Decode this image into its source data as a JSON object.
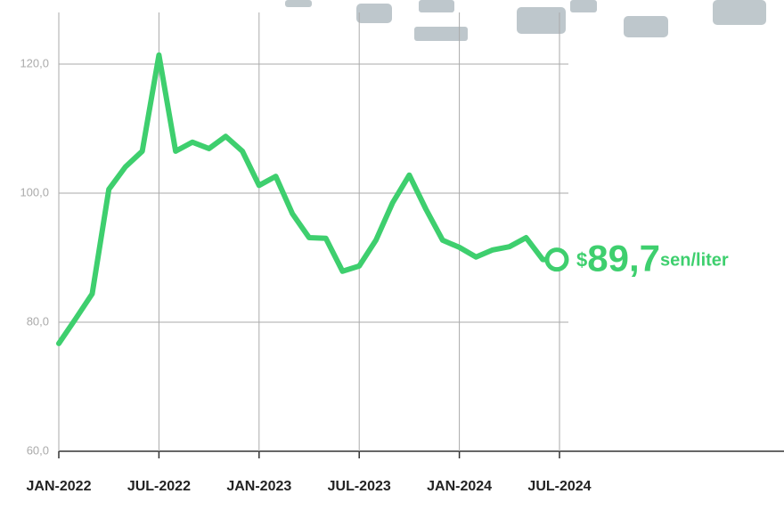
{
  "chart_data": {
    "type": "line",
    "categories": [
      "JAN-2022",
      null,
      null,
      null,
      null,
      null,
      "JUL-2022",
      null,
      null,
      null,
      null,
      null,
      "JAN-2023",
      null,
      null,
      null,
      null,
      null,
      "JUL-2023",
      null,
      null,
      null,
      null,
      null,
      "JAN-2024",
      null,
      null,
      null,
      null,
      null,
      "JUL-2024"
    ],
    "series": [
      {
        "color": "#3ecf6e",
        "values": [
          76.7,
          80.5,
          84.4,
          100.6,
          104.1,
          106.5,
          121.4,
          106.5,
          107.9,
          106.9,
          108.8,
          106.5,
          101.2,
          102.6,
          96.8,
          93.1,
          93.0,
          87.9,
          88.7,
          92.7,
          98.5,
          102.8,
          97.5,
          92.7,
          91.6,
          90.1,
          91.2,
          91.7,
          93.1,
          89.7,
          89.7
        ],
        "value_labels": [
          null,
          null,
          null,
          null,
          null,
          null,
          null,
          null,
          null,
          null,
          null,
          null,
          null,
          null,
          null,
          null,
          null,
          null,
          null,
          null,
          null,
          null,
          null,
          null,
          null,
          null,
          null,
          null,
          null,
          null,
          "89,7"
        ]
      }
    ],
    "annotation": {
      "prefix": "$",
      "unit": "sen/liter"
    },
    "ylim": [
      60,
      128
    ],
    "yticks": [
      {
        "value": 60,
        "label": "60,0"
      },
      {
        "value": 80,
        "label": "80,0"
      },
      {
        "value": 100,
        "label": "100,0"
      },
      {
        "value": 120,
        "label": "120,0"
      }
    ],
    "grid": true
  }
}
